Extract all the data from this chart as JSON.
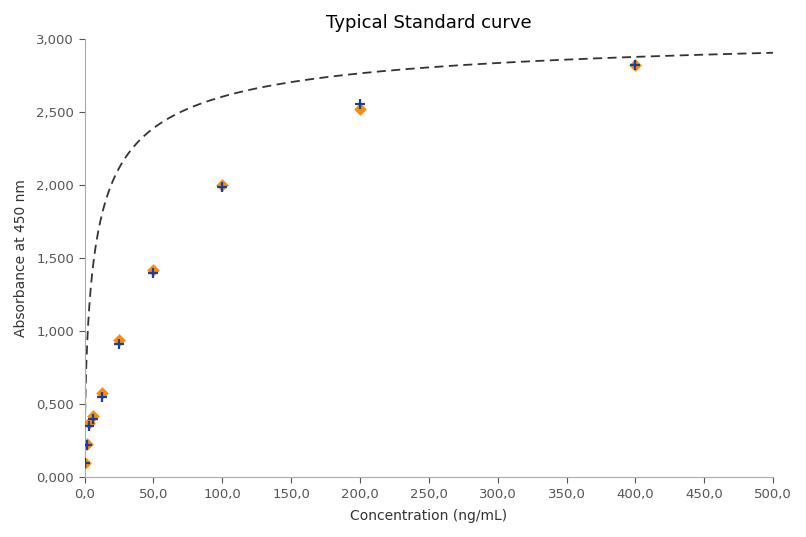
{
  "title": "Typical Standard curve",
  "xlabel": "Concentration (ng/mL)",
  "ylabel": "Absorbance at 450 nm",
  "xlim": [
    0,
    500
  ],
  "ylim": [
    0,
    3.0
  ],
  "xticks": [
    0,
    50,
    100,
    150,
    200,
    250,
    300,
    350,
    400,
    450,
    500
  ],
  "yticks": [
    0.0,
    0.5,
    1.0,
    1.5,
    2.0,
    2.5,
    3.0
  ],
  "ytick_labels": [
    "0,000",
    "0,500",
    "1,000",
    "1,500",
    "2,000",
    "2,500",
    "3,000"
  ],
  "xtick_labels": [
    "0,0",
    "50,0",
    "100,0",
    "150,0",
    "200,0",
    "250,0",
    "300,0",
    "350,0",
    "400,0",
    "450,0",
    "500,0"
  ],
  "x_data_orange": [
    0.0,
    1.56,
    3.125,
    6.25,
    12.5,
    25.0,
    50.0,
    100.0,
    200.0,
    400.0
  ],
  "y_data_orange": [
    0.1,
    0.23,
    0.37,
    0.42,
    0.575,
    0.94,
    1.42,
    2.0,
    2.52,
    2.82
  ],
  "x_data_blue": [
    0.0,
    1.56,
    3.125,
    6.25,
    12.5,
    25.0,
    50.0,
    100.0,
    200.0,
    400.0
  ],
  "y_data_blue": [
    0.1,
    0.22,
    0.35,
    0.4,
    0.55,
    0.91,
    1.4,
    1.99,
    2.555,
    2.82
  ],
  "orange_color": "#FF8C00",
  "blue_color": "#1A3FA0",
  "curve_color": "#333333",
  "background_color": "#FFFFFF",
  "border_color": "#AAAAAA",
  "title_fontsize": 13,
  "label_fontsize": 10,
  "tick_fontsize": 9.5,
  "figsize": [
    8.06,
    5.37
  ],
  "dpi": 100
}
